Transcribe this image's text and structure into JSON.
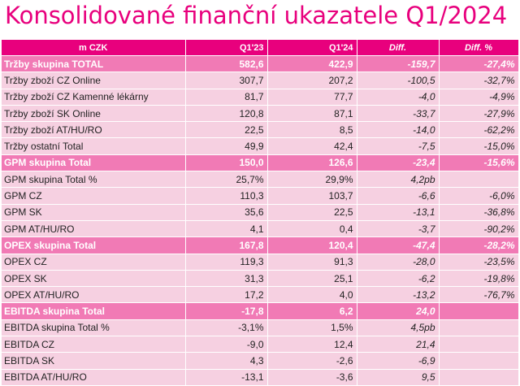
{
  "title": "Konsolidované finanční ukazatele Q1/2024",
  "table": {
    "headers": [
      "m CZK",
      "Q1'23",
      "Q1'24",
      "Diff.",
      "Diff. %"
    ],
    "rows": [
      {
        "label": "Tržby skupina TOTAL",
        "q123": "582,6",
        "q124": "422,9",
        "diff": "-159,7",
        "diffp": "-27,4%",
        "highlight": true
      },
      {
        "label": "Tržby zboží CZ Online",
        "q123": "307,7",
        "q124": "207,2",
        "diff": "-100,5",
        "diffp": "-32,7%",
        "highlight": false
      },
      {
        "label": "Tržby zboží CZ Kamenné lékárny",
        "q123": "81,7",
        "q124": "77,7",
        "diff": "-4,0",
        "diffp": "-4,9%",
        "highlight": false
      },
      {
        "label": "Tržby zboží SK Online",
        "q123": "120,8",
        "q124": "87,1",
        "diff": "-33,7",
        "diffp": "-27,9%",
        "highlight": false
      },
      {
        "label": "Tržby zboží AT/HU/RO",
        "q123": "22,5",
        "q124": "8,5",
        "diff": "-14,0",
        "diffp": "-62,2%",
        "highlight": false
      },
      {
        "label": "Tržby ostatní Total",
        "q123": "49,9",
        "q124": "42,4",
        "diff": "-7,5",
        "diffp": "-15,0%",
        "highlight": false
      },
      {
        "label": "GPM skupina Total",
        "q123": "150,0",
        "q124": "126,6",
        "diff": "-23,4",
        "diffp": "-15,6%",
        "highlight": true
      },
      {
        "label": "GPM skupina Total %",
        "q123": "25,7%",
        "q124": "29,9%",
        "diff": "4,2pb",
        "diffp": "",
        "highlight": false
      },
      {
        "label": "GPM CZ",
        "q123": "110,3",
        "q124": "103,7",
        "diff": "-6,6",
        "diffp": "-6,0%",
        "highlight": false
      },
      {
        "label": "GPM SK",
        "q123": "35,6",
        "q124": "22,5",
        "diff": "-13,1",
        "diffp": "-36,8%",
        "highlight": false
      },
      {
        "label": "GPM AT/HU/RO",
        "q123": "4,1",
        "q124": "0,4",
        "diff": "-3,7",
        "diffp": "-90,2%",
        "highlight": false
      },
      {
        "label": "OPEX skupina Total",
        "q123": "167,8",
        "q124": "120,4",
        "diff": "-47,4",
        "diffp": "-28,2%",
        "highlight": true
      },
      {
        "label": "OPEX CZ",
        "q123": "119,3",
        "q124": "91,3",
        "diff": "-28,0",
        "diffp": "-23,5%",
        "highlight": false
      },
      {
        "label": "OPEX SK",
        "q123": "31,3",
        "q124": "25,1",
        "diff": "-6,2",
        "diffp": "-19,8%",
        "highlight": false
      },
      {
        "label": "OPEX AT/HU/RO",
        "q123": "17,2",
        "q124": "4,0",
        "diff": "-13,2",
        "diffp": "-76,7%",
        "highlight": false
      },
      {
        "label": "EBITDA skupina Total",
        "q123": "-17,8",
        "q124": "6,2",
        "diff": "24,0",
        "diffp": "",
        "highlight": true
      },
      {
        "label": "EBITDA skupina Total %",
        "q123": "-3,1%",
        "q124": "1,5%",
        "diff": "4,5pb",
        "diffp": "",
        "highlight": false
      },
      {
        "label": "EBITDA CZ",
        "q123": "-9,0",
        "q124": "12,4",
        "diff": "21,4",
        "diffp": "",
        "highlight": false
      },
      {
        "label": "EBITDA SK",
        "q123": "4,3",
        "q124": "-2,6",
        "diff": "-6,9",
        "diffp": "",
        "highlight": false
      },
      {
        "label": "EBITDA AT/HU/RO",
        "q123": "-13,1",
        "q124": "-3,6",
        "diff": "9,5",
        "diffp": "",
        "highlight": false
      }
    ]
  }
}
